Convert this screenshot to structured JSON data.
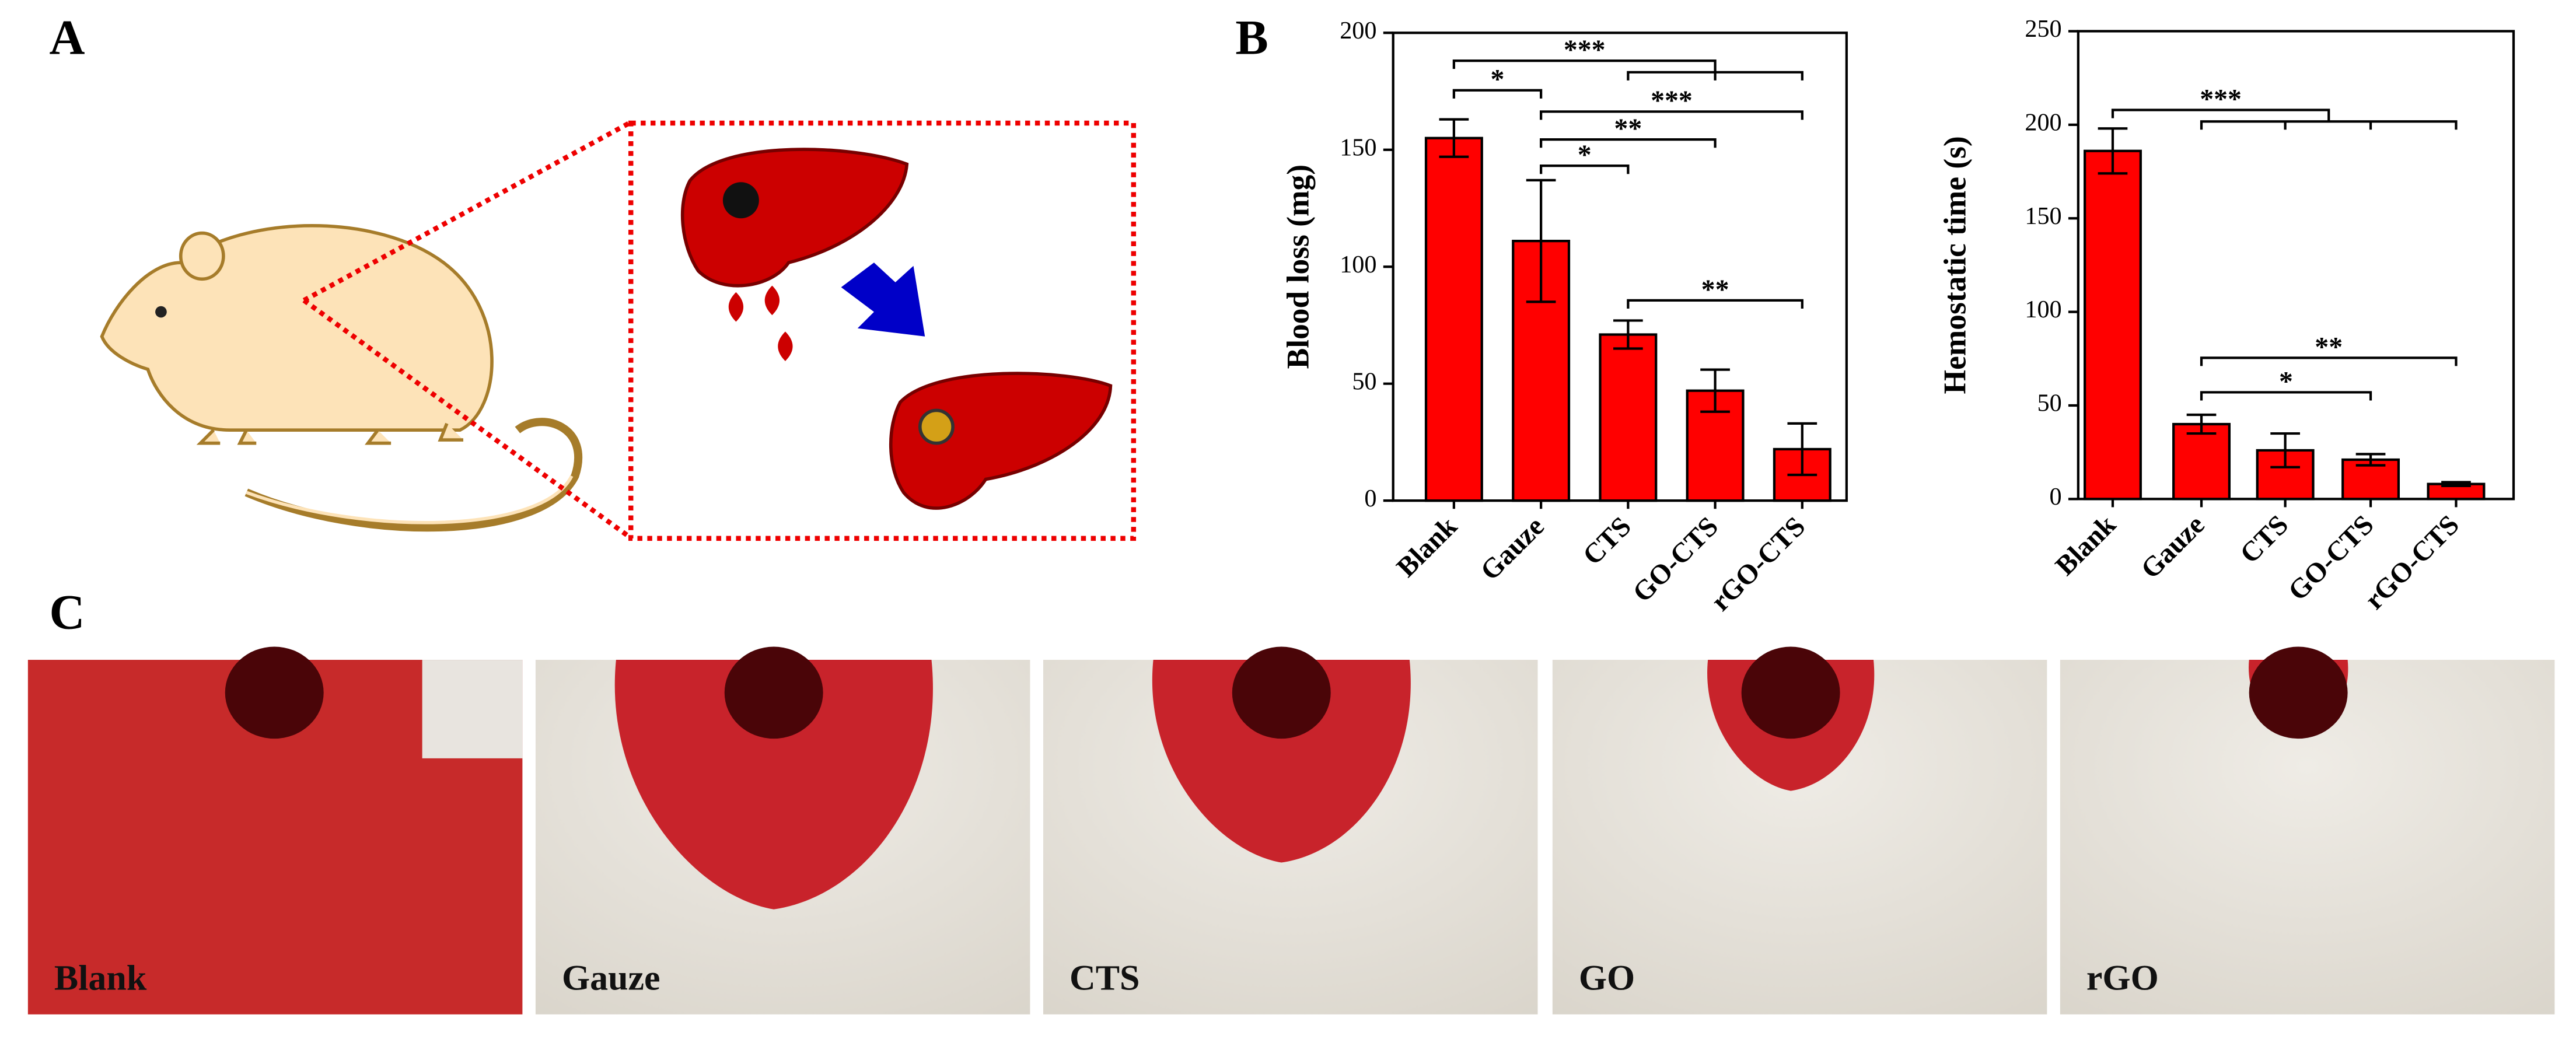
{
  "panels": {
    "a": "A",
    "b": "B",
    "c": "C"
  },
  "photos": [
    "Blank",
    "Gauze",
    "CTS",
    "GO",
    "rGO"
  ],
  "chart_data": [
    {
      "type": "bar",
      "y_label": "Blood loss (mg)",
      "categories": [
        "Blank",
        "Gauze",
        "CTS",
        "GO-CTS",
        "rGO-CTS"
      ],
      "values": [
        155,
        111,
        71,
        47,
        22
      ],
      "errors": [
        8,
        26,
        6,
        9,
        11
      ],
      "color": "#ff0000",
      "ylim": [
        0,
        200
      ],
      "yticks": [
        0,
        50,
        100,
        150,
        200
      ],
      "annotations": [
        {
          "text": "***",
          "from": "Blank",
          "to": [
            "CTS",
            "GO-CTS",
            "rGO-CTS"
          ]
        },
        {
          "text": "*",
          "from": "Blank",
          "to": [
            "Gauze"
          ]
        },
        {
          "text": "***",
          "from": "Gauze",
          "to": [
            "rGO-CTS"
          ]
        },
        {
          "text": "**",
          "from": "Gauze",
          "to": [
            "GO-CTS"
          ]
        },
        {
          "text": "*",
          "from": "Gauze",
          "to": [
            "CTS"
          ]
        },
        {
          "text": "**",
          "from": "CTS",
          "to": [
            "rGO-CTS"
          ]
        }
      ]
    },
    {
      "type": "bar",
      "y_label": "Hemostatic time (s)",
      "categories": [
        "Blank",
        "Gauze",
        "CTS",
        "GO-CTS",
        "rGO-CTS"
      ],
      "values": [
        186,
        40,
        26,
        21,
        8
      ],
      "errors": [
        12,
        5,
        9,
        3,
        1
      ],
      "color": "#ff0000",
      "ylim": [
        0,
        250
      ],
      "yticks": [
        0,
        50,
        100,
        150,
        200,
        250
      ],
      "annotations": [
        {
          "text": "***",
          "from": "Blank",
          "to": [
            "Gauze",
            "CTS",
            "GO-CTS",
            "rGO-CTS"
          ]
        },
        {
          "text": "**",
          "from": "Gauze",
          "to": [
            "rGO-CTS"
          ]
        },
        {
          "text": "*",
          "from": "Gauze",
          "to": [
            "GO-CTS"
          ]
        }
      ]
    }
  ]
}
